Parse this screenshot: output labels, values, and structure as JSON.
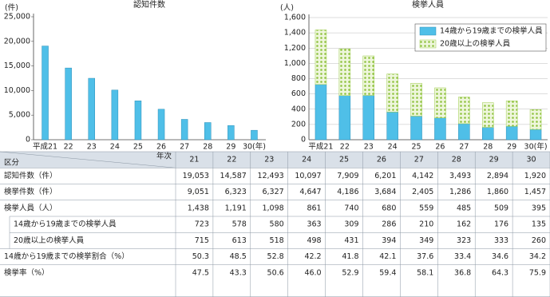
{
  "chart_data": [
    {
      "type": "bar",
      "title": "認知件数",
      "unit": "(件)",
      "categories": [
        "平成21",
        "22",
        "23",
        "24",
        "25",
        "26",
        "27",
        "28",
        "29",
        "30(年)"
      ],
      "values": [
        19053,
        14587,
        12493,
        10097,
        7909,
        6201,
        4142,
        3493,
        2894,
        1920
      ],
      "color": "#4fbfe8",
      "ylim": [
        0,
        25000
      ],
      "yticks": [
        0,
        {
          "value": 5000,
          "label": "5,000"
        },
        {
          "value": 10000,
          "label": "10,000"
        },
        {
          "value": 15000,
          "label": "15,000"
        },
        {
          "value": 20000,
          "label": "20,000"
        },
        {
          "value": 25000,
          "label": "25,000"
        }
      ],
      "grid": false
    },
    {
      "type": "stacked-bar",
      "title": "検挙人員",
      "unit": "(人)",
      "categories": [
        "平成21",
        "22",
        "23",
        "24",
        "25",
        "26",
        "27",
        "28",
        "29",
        "30(年)"
      ],
      "series": [
        {
          "name": "14歳から19歳までの検挙人員",
          "color": "#4fbfe8",
          "values": [
            723,
            578,
            580,
            363,
            309,
            286,
            210,
            162,
            176,
            135
          ]
        },
        {
          "name": "20歳以上の検挙人員",
          "color": "#9ccc4a",
          "values": [
            715,
            613,
            518,
            498,
            431,
            394,
            349,
            323,
            333,
            260
          ]
        }
      ],
      "ylim": [
        0,
        1600
      ],
      "yticks": [
        0,
        200,
        400,
        600,
        800,
        {
          "value": 1000,
          "label": "1,000"
        },
        {
          "value": 1200,
          "label": "1,200"
        },
        {
          "value": 1400,
          "label": "1,400"
        },
        {
          "value": 1600,
          "label": "1,600"
        }
      ],
      "grid": true,
      "legend": "top-right"
    }
  ],
  "table": {
    "header": {
      "category": "区分",
      "year": "年次",
      "years": [
        "21",
        "22",
        "23",
        "24",
        "25",
        "26",
        "27",
        "28",
        "29",
        "30"
      ]
    },
    "rows": [
      {
        "label": "認知件数（件）",
        "values": [
          "19,053",
          "14,587",
          "12,493",
          "10,097",
          "7,909",
          "6,201",
          "4,142",
          "3,493",
          "2,894",
          "1,920"
        ]
      },
      {
        "label": "検挙件数（件）",
        "values": [
          "9,051",
          "6,323",
          "6,327",
          "4,647",
          "4,186",
          "3,684",
          "2,405",
          "1,286",
          "1,860",
          "1,457"
        ]
      },
      {
        "label": "検挙人員（人）",
        "values": [
          "1,438",
          "1,191",
          "1,098",
          "861",
          "740",
          "680",
          "559",
          "485",
          "509",
          "395"
        ]
      },
      {
        "label": "14歳から19歳までの検挙人員",
        "values": [
          "723",
          "578",
          "580",
          "363",
          "309",
          "286",
          "210",
          "162",
          "176",
          "135"
        ]
      },
      {
        "label": "20歳以上の検挙人員",
        "values": [
          "715",
          "613",
          "518",
          "498",
          "431",
          "394",
          "349",
          "323",
          "333",
          "260"
        ]
      },
      {
        "label": "14歳から19歳までの検挙割合（%）",
        "values": [
          "50.3",
          "48.5",
          "52.8",
          "42.2",
          "41.8",
          "42.1",
          "37.6",
          "33.4",
          "34.6",
          "34.2"
        ]
      },
      {
        "label": "検挙率（%）",
        "values": [
          "47.5",
          "43.3",
          "50.6",
          "46.0",
          "52.9",
          "59.4",
          "58.1",
          "36.8",
          "64.3",
          "75.9"
        ]
      }
    ]
  }
}
